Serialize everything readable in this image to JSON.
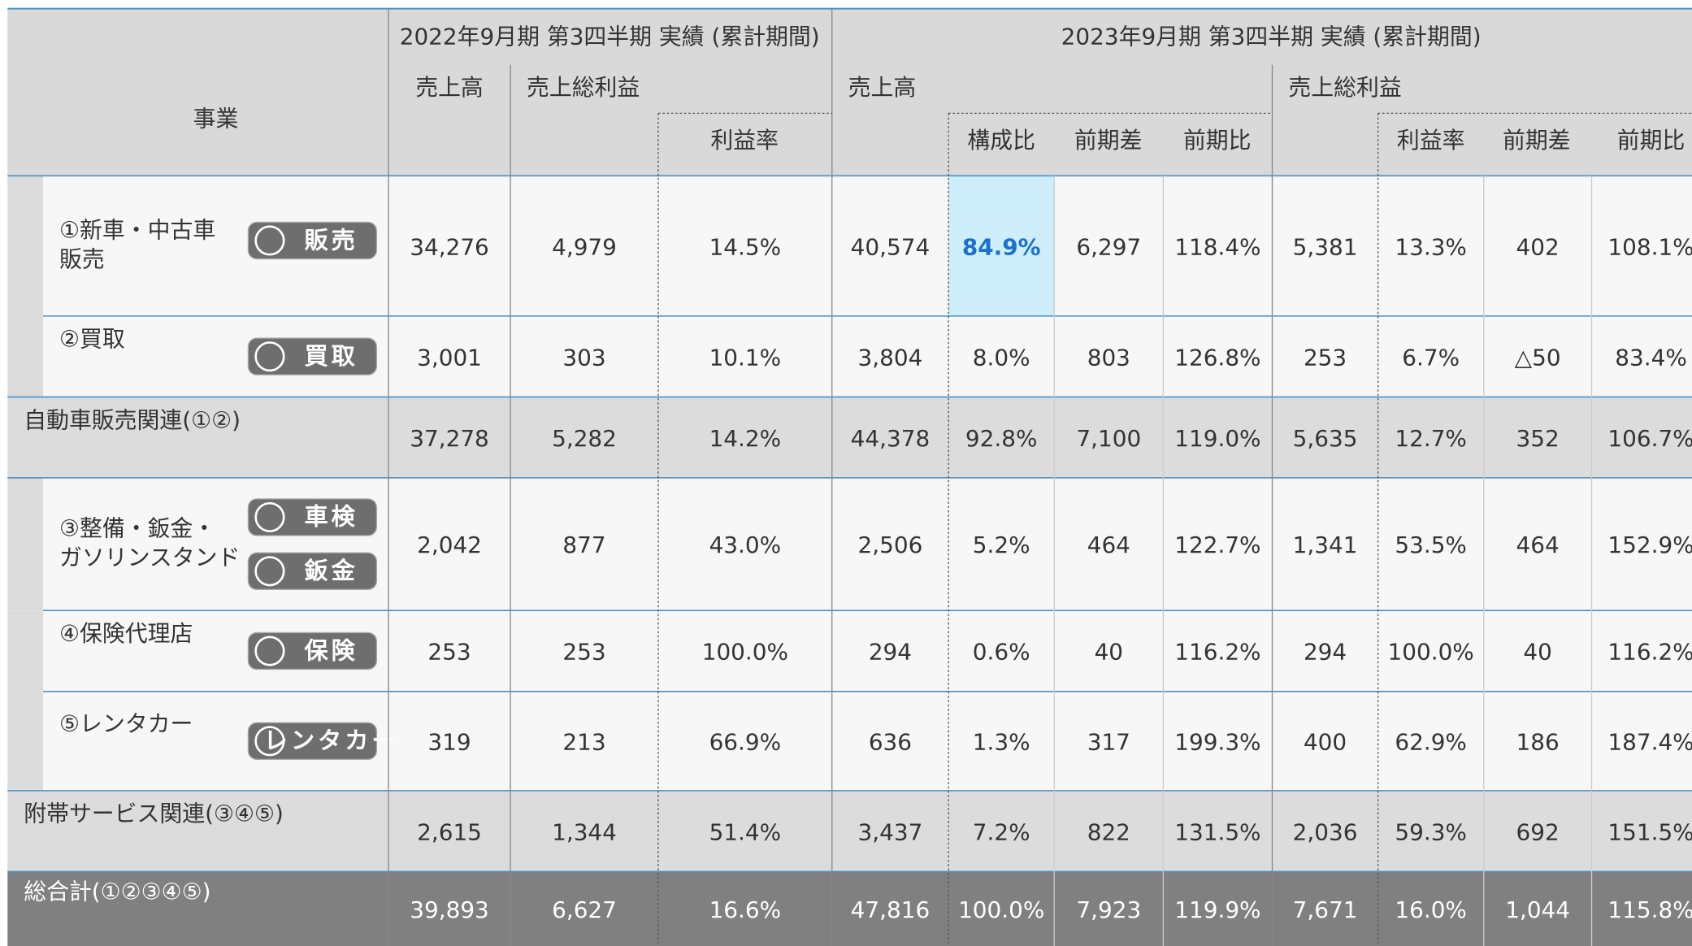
{
  "headers": {
    "business": "事業",
    "period1": "2022年9月期 第3四半期 実績 (累計期間)",
    "period2": "2023年9月期 第3四半期 実績 (累計期間)",
    "p1_sales": "売上高",
    "p1_gross": "売上総利益",
    "p1_margin": "利益率",
    "p2_sales": "売上高",
    "p2_share": "構成比",
    "p2_diff": "前期差",
    "p2_ratio": "前期比",
    "p2_gross": "売上総利益",
    "p2_gmargin": "利益率",
    "p2_gdiff": "前期差",
    "p2_gratio": "前期比"
  },
  "groups": [
    {
      "items": [
        {
          "label": [
            "①新車・中古車",
            "販売"
          ],
          "badges": [
            "販売"
          ],
          "cells": [
            "34,276",
            "4,979",
            "14.5%",
            "40,574",
            "84.9%",
            "6,297",
            "118.4%",
            "5,381",
            "13.3%",
            "402",
            "108.1%"
          ]
        },
        {
          "label": [
            "②買取"
          ],
          "badges": [
            "買取"
          ],
          "cells": [
            "3,001",
            "303",
            "10.1%",
            "3,804",
            "8.0%",
            "803",
            "126.8%",
            "253",
            "6.7%",
            "△50",
            "83.4%"
          ]
        }
      ],
      "subtotal": {
        "label": [
          "自動車販売関連(①②)"
        ],
        "cells": [
          "37,278",
          "5,282",
          "14.2%",
          "44,378",
          "92.8%",
          "7,100",
          "119.0%",
          "5,635",
          "12.7%",
          "352",
          "106.7%"
        ]
      }
    },
    {
      "items": [
        {
          "label": [
            "③整備・鈑金・",
            "ガソリンスタンド"
          ],
          "badges": [
            "車検",
            "鈑金"
          ],
          "cells": [
            "2,042",
            "877",
            "43.0%",
            "2,506",
            "5.2%",
            "464",
            "122.7%",
            "1,341",
            "53.5%",
            "464",
            "152.9%"
          ]
        },
        {
          "label": [
            "④保険代理店"
          ],
          "badges": [
            "保険"
          ],
          "cells": [
            "253",
            "253",
            "100.0%",
            "294",
            "0.6%",
            "40",
            "116.2%",
            "294",
            "100.0%",
            "40",
            "116.2%"
          ]
        },
        {
          "label": [
            "⑤レンタカー"
          ],
          "badges": [
            "レンタカー"
          ],
          "cells": [
            "319",
            "213",
            "66.9%",
            "636",
            "1.3%",
            "317",
            "199.3%",
            "400",
            "62.9%",
            "186",
            "187.4%"
          ]
        }
      ],
      "subtotal": {
        "label": [
          "附帯サービス関連(③④⑤)"
        ],
        "cells": [
          "2,615",
          "1,344",
          "51.4%",
          "3,437",
          "7.2%",
          "822",
          "131.5%",
          "2,036",
          "59.3%",
          "692",
          "151.5%"
        ]
      }
    }
  ],
  "total": {
    "label": [
      "総合計(①②③④⑤)"
    ],
    "cells": [
      "39,893",
      "6,627",
      "16.6%",
      "47,816",
      "100.0%",
      "7,923",
      "119.9%",
      "7,671",
      "16.0%",
      "1,044",
      "115.8%"
    ]
  }
}
